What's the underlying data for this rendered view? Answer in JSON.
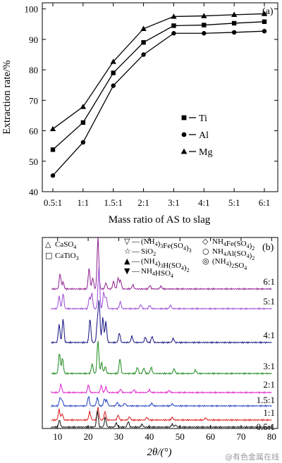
{
  "chart_data": [
    {
      "type": "line",
      "panel_label": "(a)",
      "xlabel": "Mass ratio of AS to slag",
      "ylabel": "Extraction rate/%",
      "categories": [
        "0.5:1",
        "1:1",
        "1.5:1",
        "2:1",
        "3:1",
        "4:1",
        "5:1",
        "6:1"
      ],
      "ylim": [
        40,
        102
      ],
      "yticks": [
        40,
        50,
        60,
        70,
        80,
        90,
        100
      ],
      "legend_position": "center-right",
      "series": [
        {
          "name": "Ti",
          "marker": "square",
          "values": [
            53.8,
            62.7,
            79.0,
            89.0,
            94.5,
            94.7,
            95.3,
            95.8
          ]
        },
        {
          "name": "Al",
          "marker": "circle",
          "values": [
            45.3,
            56.2,
            74.8,
            85.0,
            92.0,
            92.0,
            92.3,
            92.7
          ]
        },
        {
          "name": "Mg",
          "marker": "triangle",
          "values": [
            60.6,
            67.9,
            82.7,
            93.5,
            97.5,
            97.7,
            98.1,
            98.4
          ]
        }
      ]
    },
    {
      "type": "line",
      "panel_label": "(b)",
      "xlabel": "2θ/(°)",
      "x_ticks": [
        10,
        20,
        30,
        40,
        50,
        60,
        70,
        80
      ],
      "xlim": [
        5,
        82
      ],
      "legend": [
        {
          "symbol": "△",
          "name": "CaSO4"
        },
        {
          "symbol": "□",
          "name": "CaTiO3"
        },
        {
          "symbol": "▽",
          "name": "(NH4)3Fe(SO4)3"
        },
        {
          "symbol": "☆",
          "name": "SiO2"
        },
        {
          "symbol": "▲",
          "name": "(NH4)3H(SO4)2"
        },
        {
          "symbol": "▼",
          "name": "NH4HSO4"
        },
        {
          "symbol": "◇",
          "name": "NH4Fe(SO4)2"
        },
        {
          "symbol": "○",
          "name": "NH4Al(SO4)2"
        },
        {
          "symbol": "◎",
          "name": "(NH4)2SO4"
        }
      ],
      "patterns": [
        {
          "label": "6:1",
          "color": "#8e1f8e",
          "peaks": [
            [
              10.8,
              22
            ],
            [
              11.8,
              10
            ],
            [
              20.3,
              30
            ],
            [
              21.5,
              16
            ],
            [
              23.2,
              74
            ],
            [
              25.8,
              9
            ],
            [
              28.3,
              11
            ],
            [
              29.8,
              16
            ],
            [
              30.6,
              12
            ],
            [
              34.6,
              6
            ],
            [
              40.2,
              5
            ],
            [
              43.8,
              4
            ]
          ]
        },
        {
          "label": "5:1",
          "color": "#9b4ad6",
          "peaks": [
            [
              10.5,
              18
            ],
            [
              11.8,
              22
            ],
            [
              20.4,
              16
            ],
            [
              21.2,
              22
            ],
            [
              23.5,
              58
            ],
            [
              25.1,
              24
            ],
            [
              25.9,
              17
            ],
            [
              30.5,
              10
            ],
            [
              37.2,
              6
            ],
            [
              40.1,
              5
            ],
            [
              46.9,
              5
            ]
          ]
        },
        {
          "label": "4:1",
          "color": "#101080",
          "peaks": [
            [
              10.5,
              26
            ],
            [
              11.8,
              34
            ],
            [
              20.6,
              34
            ],
            [
              23.0,
              28
            ],
            [
              23.6,
              58
            ],
            [
              24.8,
              36
            ],
            [
              25.8,
              30
            ],
            [
              30.2,
              14
            ],
            [
              34.3,
              9
            ],
            [
              38.7,
              8
            ],
            [
              40.9,
              9
            ],
            [
              47.8,
              6
            ]
          ]
        },
        {
          "label": "3:1",
          "color": "#1a8a1a",
          "peaks": [
            [
              10.6,
              30
            ],
            [
              11.6,
              22
            ],
            [
              21.3,
              14
            ],
            [
              23.2,
              48
            ],
            [
              24.4,
              16
            ],
            [
              25.6,
              10
            ],
            [
              30.4,
              22
            ],
            [
              36.1,
              9
            ],
            [
              38.2,
              8
            ],
            [
              40.6,
              9
            ],
            [
              48.1,
              7
            ],
            [
              55.1,
              5
            ]
          ]
        },
        {
          "label": "2:1",
          "color": "#e01ecb",
          "peaks": [
            [
              11.1,
              12
            ],
            [
              20.1,
              11
            ],
            [
              24.3,
              10
            ],
            [
              25.8,
              8
            ],
            [
              30.6,
              5
            ],
            [
              35.0,
              4
            ],
            [
              40.0,
              4
            ],
            [
              46.5,
              3
            ]
          ]
        },
        {
          "label": "1.5:1",
          "color": "#2040c0",
          "peaks": [
            [
              10.8,
              12
            ],
            [
              11.5,
              8
            ],
            [
              20.1,
              14
            ],
            [
              23.0,
              12
            ],
            [
              25.3,
              10
            ],
            [
              26.1,
              8
            ],
            [
              29.5,
              5
            ],
            [
              32.0,
              4
            ],
            [
              40.8,
              4
            ],
            [
              47.5,
              3
            ]
          ]
        },
        {
          "label": "1:1",
          "color": "#d81818",
          "peaks": [
            [
              10.5,
              15
            ],
            [
              11.5,
              9
            ],
            [
              20.5,
              12
            ],
            [
              23.2,
              18
            ],
            [
              25.5,
              12
            ],
            [
              29.8,
              7
            ],
            [
              33.5,
              5
            ],
            [
              39.2,
              4
            ],
            [
              47.5,
              4
            ],
            [
              58.4,
              3
            ]
          ]
        },
        {
          "label": "0.5:1",
          "color": "#111111",
          "peaks": [
            [
              10.6,
              10
            ],
            [
              23.0,
              24
            ],
            [
              25.6,
              14
            ],
            [
              29.2,
              6
            ],
            [
              33.1,
              8
            ],
            [
              37.6,
              4
            ],
            [
              47.5,
              4
            ],
            [
              48.6,
              3
            ]
          ]
        }
      ]
    }
  ],
  "watermark": "@有色金属在线"
}
